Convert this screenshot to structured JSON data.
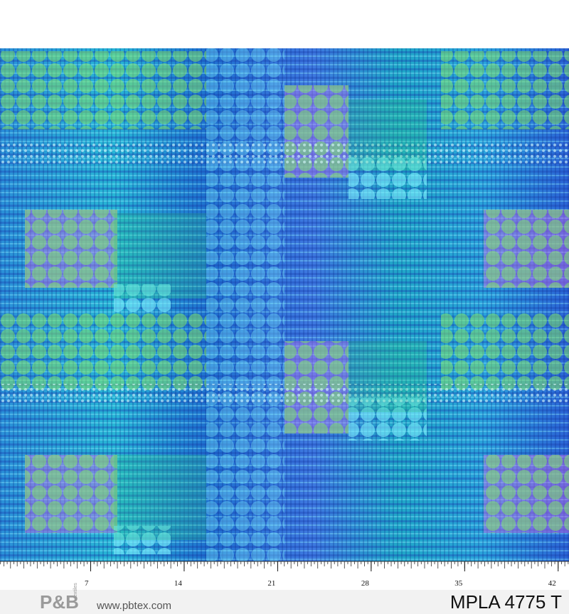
{
  "ruler": {
    "labels": [
      7,
      14,
      21,
      28,
      35,
      42
    ]
  },
  "footer": {
    "logo": "P&B",
    "logo_sub": "textiles",
    "url": "www.pbtex.com",
    "code": "MPLA 4775 T"
  }
}
